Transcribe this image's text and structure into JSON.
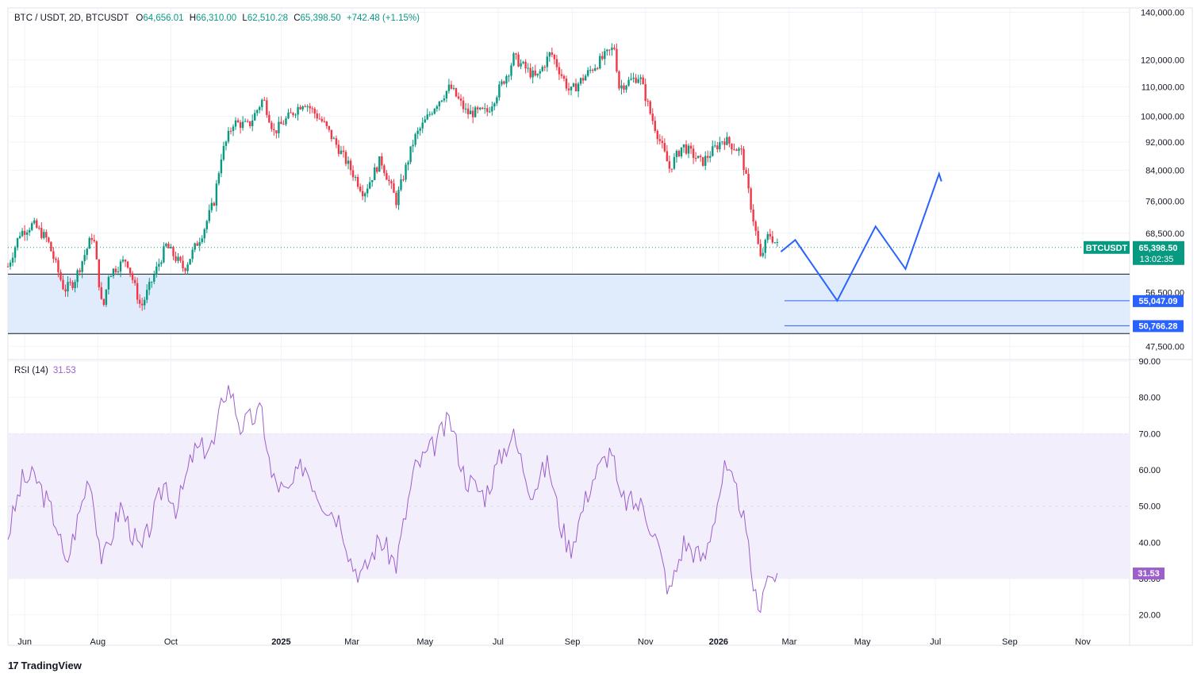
{
  "header": {
    "symbol": "BTC / USDT, 2D, BTCUSDT",
    "o_label": "O",
    "o_value": "64,656.01",
    "h_label": "H",
    "h_value": "66,310.00",
    "l_label": "L",
    "l_value": "62,510.28",
    "c_label": "C",
    "c_value": "65,398.50",
    "change": "+742.48 (+1.15%)"
  },
  "rsi_header": {
    "label": "RSI (14)",
    "value": "31.53"
  },
  "brand": {
    "logo": "17",
    "name": "TradingView"
  },
  "colors": {
    "up": "#089981",
    "down": "#f23645",
    "rsi": "#9c5fcc",
    "projection": "#2962ff",
    "zone_fill": "#dbe9fb",
    "rsi_band": "#f3eefb"
  },
  "chart_data": [
    {
      "type": "candlestick",
      "title": "BTC / USDT, 2D, BTCUSDT",
      "x_ticks": [
        {
          "label": "Jun",
          "date": "2024-06-01",
          "bold": false
        },
        {
          "label": "Aug",
          "date": "2024-08-01",
          "bold": false
        },
        {
          "label": "Oct",
          "date": "2024-10-01",
          "bold": false
        },
        {
          "label": "2025",
          "date": "2025-01-01",
          "bold": true
        },
        {
          "label": "Mar",
          "date": "2025-03-01",
          "bold": false
        },
        {
          "label": "May",
          "date": "2025-05-01",
          "bold": false
        },
        {
          "label": "Jul",
          "date": "2025-07-01",
          "bold": false
        },
        {
          "label": "Sep",
          "date": "2025-09-01",
          "bold": false
        },
        {
          "label": "Nov",
          "date": "2025-11-01",
          "bold": false
        },
        {
          "label": "2026",
          "date": "2026-01-01",
          "bold": true
        },
        {
          "label": "Mar",
          "date": "2026-03-01",
          "bold": false
        },
        {
          "label": "May",
          "date": "2026-05-01",
          "bold": false
        },
        {
          "label": "Jul",
          "date": "2026-07-01",
          "bold": false
        },
        {
          "label": "Sep",
          "date": "2026-09-01",
          "bold": false
        },
        {
          "label": "Nov",
          "date": "2026-11-01",
          "bold": false
        }
      ],
      "y_ticks": [
        "140,000.00",
        "120,000.00",
        "110,000.00",
        "100,000.00",
        "92,000.00",
        "84,000.00",
        "76,000.00",
        "68,500.00",
        "56,500.00",
        "47,500.00"
      ],
      "y_tick_values": [
        140000,
        120000,
        110000,
        100000,
        92000,
        84000,
        76000,
        68500,
        56500,
        47500
      ],
      "scale": "log",
      "ylim": [
        45500,
        142000
      ],
      "price_path": [
        [
          "2024-05-18",
          61500
        ],
        [
          "2024-05-28",
          68500
        ],
        [
          "2024-06-08",
          70500
        ],
        [
          "2024-06-20",
          67000
        ],
        [
          "2024-07-04",
          57000
        ],
        [
          "2024-07-12",
          58500
        ],
        [
          "2024-07-28",
          68500
        ],
        [
          "2024-08-05",
          53000
        ],
        [
          "2024-08-10",
          60000
        ],
        [
          "2024-08-25",
          63000
        ],
        [
          "2024-09-06",
          53800
        ],
        [
          "2024-09-27",
          65800
        ],
        [
          "2024-10-12",
          61000
        ],
        [
          "2024-10-28",
          69000
        ],
        [
          "2024-11-06",
          76000
        ],
        [
          "2024-11-12",
          88000
        ],
        [
          "2024-11-22",
          98000
        ],
        [
          "2024-12-05",
          97000
        ],
        [
          "2024-12-17",
          106000
        ],
        [
          "2024-12-26",
          95000
        ],
        [
          "2025-01-20",
          105000
        ],
        [
          "2025-02-05",
          98000
        ],
        [
          "2025-02-25",
          86000
        ],
        [
          "2025-03-11",
          78000
        ],
        [
          "2025-03-25",
          87000
        ],
        [
          "2025-04-07",
          76000
        ],
        [
          "2025-04-22",
          93000
        ],
        [
          "2025-05-10",
          104000
        ],
        [
          "2025-05-22",
          110000
        ],
        [
          "2025-06-05",
          101000
        ],
        [
          "2025-06-22",
          101500
        ],
        [
          "2025-07-10",
          116000
        ],
        [
          "2025-07-14",
          121000
        ],
        [
          "2025-08-02",
          113000
        ],
        [
          "2025-08-14",
          123000
        ],
        [
          "2025-08-30",
          108000
        ],
        [
          "2025-09-18",
          117000
        ],
        [
          "2025-10-06",
          125000
        ],
        [
          "2025-10-10",
          110000
        ],
        [
          "2025-10-27",
          114000
        ],
        [
          "2025-11-05",
          101000
        ],
        [
          "2025-11-21",
          84500
        ],
        [
          "2025-12-02",
          91000
        ],
        [
          "2025-12-18",
          86000
        ],
        [
          "2026-01-05",
          93000
        ],
        [
          "2026-01-20",
          89000
        ],
        [
          "2026-02-05",
          63000
        ],
        [
          "2026-02-12",
          68500
        ],
        [
          "2026-02-20",
          65398.5
        ]
      ],
      "last_price": {
        "label": "BTCUSDT",
        "value": "65,398.50",
        "countdown": "13:02:35"
      },
      "support_zone": {
        "top": 60000,
        "bottom": 49500
      },
      "levels": [
        {
          "label": "55,047.09",
          "value": 55047.09
        },
        {
          "label": "50,766.28",
          "value": 50766.28
        }
      ],
      "projection_path": [
        [
          "2026-02-22",
          64500
        ],
        [
          "2026-03-06",
          67000
        ],
        [
          "2026-04-10",
          55047.09
        ],
        [
          "2026-05-12",
          70000
        ],
        [
          "2026-06-06",
          61000
        ],
        [
          "2026-07-04",
          83000
        ],
        [
          "2026-07-06",
          81000
        ]
      ]
    },
    {
      "type": "line",
      "title": "RSI (14)",
      "y_ticks": [
        "90.00",
        "80.00",
        "70.00",
        "60.00",
        "50.00",
        "40.00",
        "30.00",
        "20.00"
      ],
      "y_tick_values": [
        90,
        80,
        70,
        60,
        50,
        40,
        30,
        20
      ],
      "ylim": [
        16,
        90
      ],
      "bands": [
        70,
        50,
        30
      ],
      "rsi_path": [
        [
          "2024-05-18",
          42
        ],
        [
          "2024-05-30",
          57
        ],
        [
          "2024-06-10",
          58
        ],
        [
          "2024-06-28",
          45
        ],
        [
          "2024-07-05",
          33
        ],
        [
          "2024-07-25",
          59
        ],
        [
          "2024-08-05",
          34
        ],
        [
          "2024-08-20",
          50
        ],
        [
          "2024-09-06",
          37
        ],
        [
          "2024-09-26",
          57
        ],
        [
          "2024-10-06",
          49
        ],
        [
          "2024-10-20",
          65
        ],
        [
          "2024-11-06",
          67
        ],
        [
          "2024-11-14",
          81
        ],
        [
          "2024-11-19",
          83
        ],
        [
          "2024-11-28",
          72
        ],
        [
          "2024-12-16",
          76
        ],
        [
          "2024-12-24",
          58
        ],
        [
          "2025-01-06",
          53
        ],
        [
          "2025-01-20",
          62
        ],
        [
          "2025-02-03",
          52
        ],
        [
          "2025-02-20",
          46
        ],
        [
          "2025-03-01",
          34
        ],
        [
          "2025-03-10",
          31
        ],
        [
          "2025-03-24",
          41
        ],
        [
          "2025-04-07",
          34
        ],
        [
          "2025-04-22",
          60
        ],
        [
          "2025-05-07",
          66
        ],
        [
          "2025-05-22",
          74
        ],
        [
          "2025-06-03",
          58
        ],
        [
          "2025-06-20",
          53
        ],
        [
          "2025-07-05",
          65
        ],
        [
          "2025-07-13",
          70
        ],
        [
          "2025-07-29",
          54
        ],
        [
          "2025-08-12",
          62
        ],
        [
          "2025-08-22",
          45
        ],
        [
          "2025-08-30",
          38
        ],
        [
          "2025-09-17",
          57
        ],
        [
          "2025-10-04",
          66
        ],
        [
          "2025-10-10",
          52
        ],
        [
          "2025-10-30",
          50
        ],
        [
          "2025-11-10",
          41
        ],
        [
          "2025-11-21",
          26
        ],
        [
          "2025-12-03",
          40
        ],
        [
          "2025-12-20",
          35
        ],
        [
          "2026-01-06",
          60
        ],
        [
          "2026-01-14",
          55
        ],
        [
          "2026-01-20",
          50
        ],
        [
          "2026-02-03",
          20
        ],
        [
          "2026-02-08",
          30
        ],
        [
          "2026-02-20",
          31.53
        ]
      ],
      "last_value": "31.53"
    }
  ]
}
